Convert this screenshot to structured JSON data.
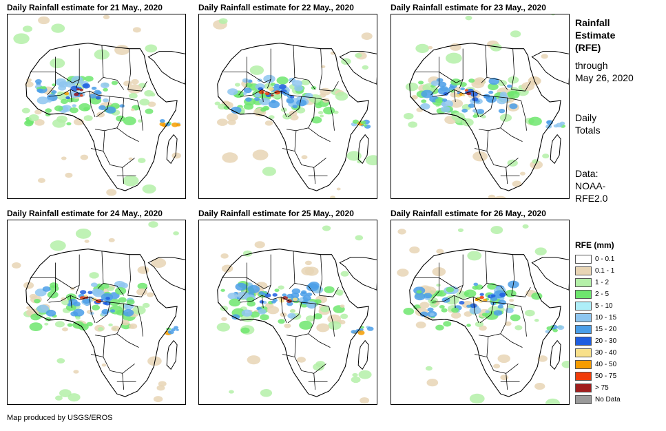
{
  "panels": [
    {
      "title": "Daily Rainfall estimate for 21 May., 2020"
    },
    {
      "title": "Daily Rainfall estimate for 22 May., 2020"
    },
    {
      "title": "Daily Rainfall estimate for 23 May., 2020"
    },
    {
      "title": "Daily Rainfall estimate for 24 May., 2020"
    },
    {
      "title": "Daily Rainfall estimate for 25 May., 2020"
    },
    {
      "title": "Daily Rainfall estimate for 26 May., 2020"
    }
  ],
  "sidebar": {
    "heading_line1": "Rainfall",
    "heading_line2": "Estimate",
    "heading_line3": "(RFE)",
    "through_line1": "through",
    "through_line2": "May 26, 2020",
    "totals_line1": "Daily",
    "totals_line2": "Totals",
    "data_line1": "Data:",
    "data_line2": "NOAA-",
    "data_line3": "RFE2.0"
  },
  "legend": {
    "title": "RFE (mm)",
    "items": [
      {
        "label": "0 - 0.1",
        "color": "#ffffff"
      },
      {
        "label": "0.1 - 1",
        "color": "#e8d5b5"
      },
      {
        "label": "1 - 2",
        "color": "#b4f0a8"
      },
      {
        "label": "2 - 5",
        "color": "#6ee66e"
      },
      {
        "label": "5 - 10",
        "color": "#aeeef8"
      },
      {
        "label": "10 - 15",
        "color": "#8ec6f0"
      },
      {
        "label": "15 - 20",
        "color": "#4a9ee8"
      },
      {
        "label": "20 - 30",
        "color": "#1f5ee0"
      },
      {
        "label": "30 - 40",
        "color": "#f8e08a"
      },
      {
        "label": "40 - 50",
        "color": "#f59c00"
      },
      {
        "label": "50 - 75",
        "color": "#f03c0a"
      },
      {
        "label": "> 75",
        "color": "#a01e1e"
      },
      {
        "label": "No Data",
        "color": "#9a9a9a"
      }
    ]
  },
  "credit": "Map produced by USGS/EROS"
}
